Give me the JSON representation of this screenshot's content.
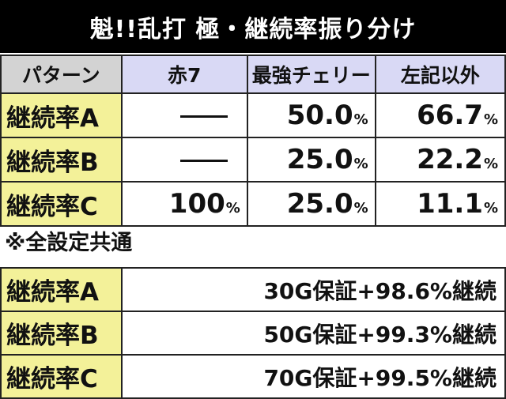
{
  "title": "魁!!乱打 極・継続率振り分け",
  "rate_table": {
    "headers": [
      "パターン",
      "赤7",
      "最強チェリー",
      "左記以外"
    ],
    "rows": [
      {
        "label": "継続率A",
        "cells": [
          "—",
          "50.0",
          "66.7"
        ]
      },
      {
        "label": "継続率B",
        "cells": [
          "—",
          "25.0",
          "22.2"
        ]
      },
      {
        "label": "継続率C",
        "cells": [
          "100",
          "25.0",
          "11.1"
        ]
      }
    ],
    "percent_sign": "%"
  },
  "note": "※全設定共通",
  "bonus_table": {
    "rows": [
      {
        "label": "継続率A",
        "value": "30G保証+98.6%継続"
      },
      {
        "label": "継続率B",
        "value": "50G保証+99.3%継続"
      },
      {
        "label": "継続率C",
        "value": "70G保証+99.5%継続"
      }
    ]
  }
}
